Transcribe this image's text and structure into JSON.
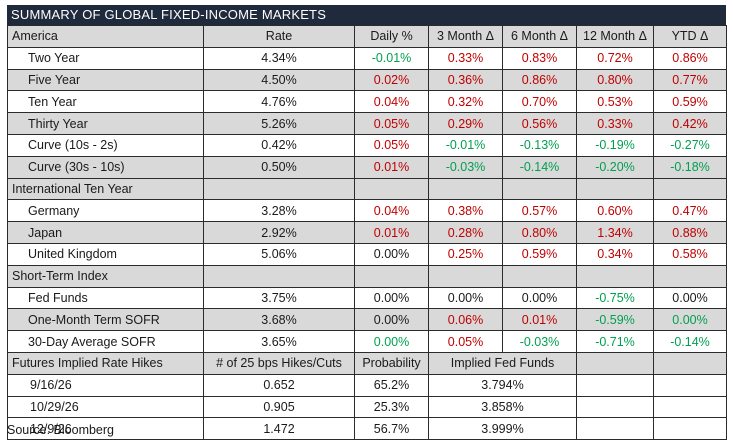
{
  "title": "SUMMARY OF GLOBAL FIXED-INCOME MARKETS",
  "header": {
    "region": "America",
    "rate": "Rate",
    "daily": "Daily %",
    "m3": "3 Month Δ",
    "m6": "6 Month Δ",
    "m12": "12 Month Δ",
    "ytd": "YTD Δ"
  },
  "america": [
    {
      "label": "Two Year",
      "rate": "4.34%",
      "daily": "-0.01%",
      "m3": "0.33%",
      "m6": "0.83%",
      "m12": "0.72%",
      "ytd": "0.86%",
      "cls": [
        "neg",
        "pos",
        "pos",
        "pos",
        "pos"
      ],
      "shade": false
    },
    {
      "label": "Five Year",
      "rate": "4.50%",
      "daily": "0.02%",
      "m3": "0.36%",
      "m6": "0.86%",
      "m12": "0.80%",
      "ytd": "0.77%",
      "cls": [
        "pos",
        "pos",
        "pos",
        "pos",
        "pos"
      ],
      "shade": true
    },
    {
      "label": "Ten Year",
      "rate": "4.76%",
      "daily": "0.04%",
      "m3": "0.32%",
      "m6": "0.70%",
      "m12": "0.53%",
      "ytd": "0.59%",
      "cls": [
        "pos",
        "pos",
        "pos",
        "pos",
        "pos"
      ],
      "shade": false
    },
    {
      "label": "Thirty Year",
      "rate": "5.26%",
      "daily": "0.05%",
      "m3": "0.29%",
      "m6": "0.56%",
      "m12": "0.33%",
      "ytd": "0.42%",
      "cls": [
        "pos",
        "pos",
        "pos",
        "pos",
        "pos"
      ],
      "shade": true
    },
    {
      "label": "Curve (10s - 2s)",
      "rate": "0.42%",
      "daily": "0.05%",
      "m3": "-0.01%",
      "m6": "-0.13%",
      "m12": "-0.19%",
      "ytd": "-0.27%",
      "cls": [
        "pos",
        "neg",
        "neg",
        "neg",
        "neg"
      ],
      "shade": false
    },
    {
      "label": "Curve (30s - 10s)",
      "rate": "0.50%",
      "daily": "0.01%",
      "m3": "-0.03%",
      "m6": "-0.14%",
      "m12": "-0.20%",
      "ytd": "-0.18%",
      "cls": [
        "pos",
        "neg",
        "neg",
        "neg",
        "neg"
      ],
      "shade": true
    }
  ],
  "international_label": "International Ten Year",
  "international": [
    {
      "label": "Germany",
      "rate": "3.28%",
      "daily": "0.04%",
      "m3": "0.38%",
      "m6": "0.57%",
      "m12": "0.60%",
      "ytd": "0.47%",
      "cls": [
        "pos",
        "pos",
        "pos",
        "pos",
        "pos"
      ],
      "shade": false
    },
    {
      "label": "Japan",
      "rate": "2.92%",
      "daily": "0.01%",
      "m3": "0.28%",
      "m6": "0.80%",
      "m12": "1.34%",
      "ytd": "0.88%",
      "cls": [
        "pos",
        "pos",
        "pos",
        "pos",
        "pos"
      ],
      "shade": true
    },
    {
      "label": "United Kingdom",
      "rate": "5.06%",
      "daily": "0.00%",
      "m3": "0.25%",
      "m6": "0.59%",
      "m12": "0.34%",
      "ytd": "0.58%",
      "cls": [
        "neu",
        "pos",
        "pos",
        "pos",
        "pos"
      ],
      "shade": false
    }
  ],
  "short_term_label": "Short-Term Index",
  "short_term": [
    {
      "label": "Fed Funds",
      "rate": "3.75%",
      "daily": "0.00%",
      "m3": "0.00%",
      "m6": "0.00%",
      "m12": "-0.75%",
      "ytd": "0.00%",
      "cls": [
        "neu",
        "neu",
        "neu",
        "neg",
        "neu"
      ],
      "shade": false
    },
    {
      "label": "One-Month Term SOFR",
      "rate": "3.68%",
      "daily": "0.00%",
      "m3": "0.06%",
      "m6": "0.01%",
      "m12": "-0.59%",
      "ytd": "0.00%",
      "cls": [
        "neu",
        "pos",
        "pos",
        "neg",
        "neg"
      ],
      "shade": true
    },
    {
      "label": "30-Day Average SOFR",
      "rate": "3.65%",
      "daily": "0.00%",
      "m3": "0.05%",
      "m6": "-0.03%",
      "m12": "-0.71%",
      "ytd": "-0.14%",
      "cls": [
        "neg",
        "pos",
        "neg",
        "neg",
        "neg"
      ],
      "shade": false
    }
  ],
  "futures_header": {
    "label": "Futures Implied Rate Hikes",
    "hikes": "# of 25 bps Hikes/Cuts",
    "prob": "Probability",
    "implied": "Implied Fed Funds"
  },
  "futures": [
    {
      "date": "9/16/26",
      "hikes": "0.652",
      "prob": "65.2%",
      "implied": "3.794%"
    },
    {
      "date": "10/29/26",
      "hikes": "0.905",
      "prob": "25.3%",
      "implied": "3.858%"
    },
    {
      "date": "12/9/26",
      "hikes": "1.472",
      "prob": "56.7%",
      "implied": "3.999%"
    }
  ],
  "source": "Source: Bloomberg",
  "colors": {
    "title_bg": "#1f2a3c",
    "shade": "#d9d9d9",
    "positive": "#c00000",
    "negative": "#00a050"
  }
}
